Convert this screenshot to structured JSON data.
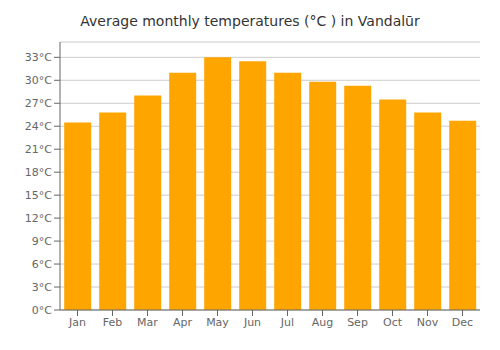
{
  "chart_data": {
    "type": "bar",
    "title": "Average monthly temperatures (°C ) in Vandalūr",
    "categories": [
      "Jan",
      "Feb",
      "Mar",
      "Apr",
      "May",
      "Jun",
      "Jul",
      "Aug",
      "Sep",
      "Oct",
      "Nov",
      "Dec"
    ],
    "values": [
      24.5,
      25.8,
      28.0,
      31.0,
      33.0,
      32.5,
      31.0,
      29.8,
      29.3,
      27.5,
      25.8,
      24.7
    ],
    "color": "#FFA500",
    "ylim": [
      0,
      35
    ],
    "yticks": [
      {
        "value": 0,
        "label": "0°C"
      },
      {
        "value": 3,
        "label": "3°C"
      },
      {
        "value": 6,
        "label": "6°C"
      },
      {
        "value": 9,
        "label": "9°C"
      },
      {
        "value": 12,
        "label": "12°C"
      },
      {
        "value": 15,
        "label": "15°C"
      },
      {
        "value": 18,
        "label": "18°C"
      },
      {
        "value": 21,
        "label": "21°C"
      },
      {
        "value": 24,
        "label": "24°C"
      },
      {
        "value": 27,
        "label": "27°C"
      },
      {
        "value": 30,
        "label": "30°C"
      },
      {
        "value": 33,
        "label": "33°C"
      }
    ],
    "grid": true
  }
}
